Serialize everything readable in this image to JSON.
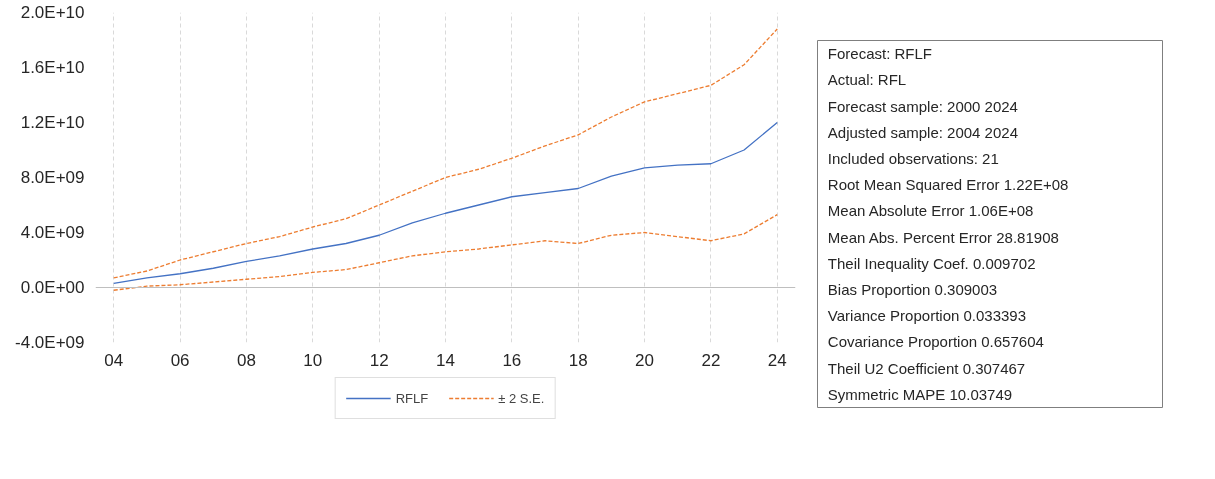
{
  "chart_data": [
    {
      "type": "line",
      "categories": [
        "04",
        null,
        "06",
        null,
        "08",
        null,
        "10",
        null,
        "12",
        null,
        "14",
        null,
        "16",
        null,
        "18",
        null,
        "20",
        null,
        "22",
        null,
        "24"
      ],
      "series": [
        {
          "name": "RFLF",
          "color": "#4472c4",
          "line_style": "solid",
          "values": [
            300000000.0,
            700000000.0,
            1000000000.0,
            1400000000.0,
            1900000000.0,
            2300000000.0,
            2800000000.0,
            3200000000.0,
            3800000000.0,
            4700000000.0,
            5400000000.0,
            6000000000.0,
            6600000000.0,
            6900000000.0,
            7200000000.0,
            8100000000.0,
            8700000000.0,
            8900000000.0,
            9000000000.0,
            10000000000.0,
            12000000000.0
          ]
        },
        {
          "name": "± 2 S.E.",
          "color": "#ed7d31",
          "line_style": "dashed",
          "values": [
            700000000.0,
            1200000000.0,
            2000000000.0,
            2600000000.0,
            3200000000.0,
            3700000000.0,
            4400000000.0,
            5000000000.0,
            6000000000.0,
            7000000000.0,
            8000000000.0,
            8600000000.0,
            9400000000.0,
            10300000000.0,
            11100000000.0,
            12400000000.0,
            13500000000.0,
            14100000000.0,
            14700000000.0,
            16200000000.0,
            18800000000.0
          ]
        },
        {
          "color": "#ed7d31",
          "line_style": "dashed",
          "values": [
            -200000000.0,
            100000000.0,
            200000000.0,
            400000000.0,
            600000000.0,
            800000000.0,
            1100000000.0,
            1300000000.0,
            1800000000.0,
            2300000000.0,
            2600000000.0,
            2800000000.0,
            3100000000.0,
            3400000000.0,
            3200000000.0,
            3800000000.0,
            4000000000.0,
            3700000000.0,
            3400000000.0,
            3900000000.0,
            5300000000.0
          ]
        }
      ],
      "ylim": [
        -4000000000.0,
        20000000000.0
      ],
      "yticks": [
        {
          "value": -4000000000.0,
          "label": "-4.0E+09"
        },
        {
          "value": 0,
          "label": "0.0E+00"
        },
        {
          "value": 4000000000.0,
          "label": "4.0E+09"
        },
        {
          "value": 8000000000.0,
          "label": "8.0E+09"
        },
        {
          "value": 12000000000.0,
          "label": "1.2E+10"
        },
        {
          "value": 16000000000.0,
          "label": "1.6E+10"
        },
        {
          "value": 20000000000.0,
          "label": "2.0E+10"
        }
      ],
      "ref_lines": [
        {
          "axis": "y",
          "value": 0,
          "color": "#bfbfbf"
        }
      ],
      "grid": "x",
      "legend": "bottom",
      "marker": "none"
    },
    {
      "type": "other",
      "annotations": [
        "Forecast: RFLF",
        "Actual: RFL",
        "Forecast sample: 2000 2024",
        "Adjusted sample: 2004 2024",
        "Included observations: 21",
        "Root Mean Squared Error    1.22E+08",
        "Mean Absolute Error    1.06E+08",
        "Mean Abs. Percent Error       28.81908",
        "Theil Inequality Coef.    0.009702",
        "Bias Proportion       0.309003",
        "Variance Proportion         0.033393",
        "Covariance Proportion       0.657604",
        "Theil U2 Coefficient               0.307467",
        "Symmetric MAPE        10.03749"
      ]
    }
  ]
}
